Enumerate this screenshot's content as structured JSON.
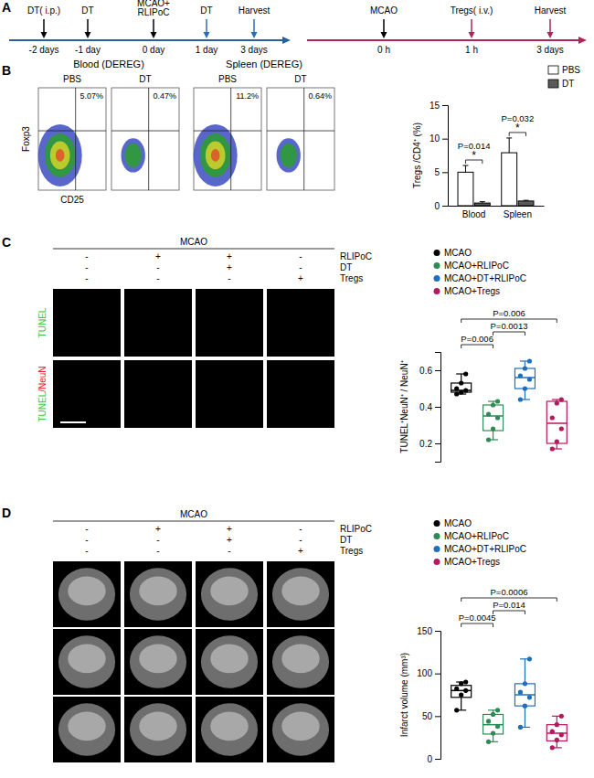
{
  "panel_labels": [
    "A",
    "B",
    "C",
    "D"
  ],
  "timelines": [
    {
      "color": "#2b5fa3",
      "events": [
        {
          "label": [
            "DT( i.p.)"
          ],
          "tick": "-2 days",
          "color": "#000000"
        },
        {
          "label": [
            "DT"
          ],
          "tick": "-1 day",
          "color": "#000000"
        },
        {
          "label": [
            "MCAO+",
            "RLIPoC"
          ],
          "tick": "0 day",
          "color": "#000000"
        },
        {
          "label": [
            "DT"
          ],
          "tick": "1 day",
          "color": "#2b6cb8"
        },
        {
          "label": [
            "Harvest"
          ],
          "tick": "3 days",
          "color": "#2b6cb8"
        }
      ]
    },
    {
      "color": "#b0245e",
      "events": [
        {
          "label": [
            "MCAO"
          ],
          "tick": "0 h",
          "color": "#000000"
        },
        {
          "label": [
            "Tregs( i.v.)"
          ],
          "tick": "1 h",
          "color": "#b0245e"
        },
        {
          "label": [
            "Harvest"
          ],
          "tick": "3 days",
          "color": "#b0245e"
        }
      ]
    }
  ],
  "flow": {
    "ylabel": "Foxp3",
    "xlabel": "CD25",
    "groups": [
      {
        "title": "Blood (DEREG)",
        "plots": [
          {
            "label": "PBS",
            "percent": "5.07%"
          },
          {
            "label": "DT",
            "percent": "0.47%"
          }
        ]
      },
      {
        "title": "Spleen (DEREG)",
        "plots": [
          {
            "label": "PBS",
            "percent": "11.2%"
          },
          {
            "label": "DT",
            "percent": "0.64%"
          }
        ]
      }
    ]
  },
  "image_panels": [
    {
      "kind": "microscopy",
      "header": "MCAO",
      "rows": [
        {
          "label": "RLIPoC",
          "signs": [
            "-",
            "+",
            "+",
            "-"
          ]
        },
        {
          "label": "DT",
          "signs": [
            "-",
            "-",
            "+",
            "-"
          ]
        },
        {
          "label": "Tregs",
          "signs": [
            "-",
            "-",
            "-",
            "+"
          ]
        }
      ],
      "row_labels": [
        [
          {
            "text": "TUNEL",
            "color": "#39c939"
          }
        ],
        [
          {
            "text": "TUNEL",
            "color": "#39c939"
          },
          {
            "text": "/NeuN",
            "color": "#e8231f"
          }
        ]
      ]
    },
    {
      "kind": "mri",
      "header": "MCAO",
      "rows": [
        {
          "label": "RLIPoC",
          "signs": [
            "-",
            "+",
            "+",
            "-"
          ]
        },
        {
          "label": "DT",
          "signs": [
            "-",
            "-",
            "+",
            "-"
          ]
        },
        {
          "label": "Tregs",
          "signs": [
            "-",
            "-",
            "-",
            "+"
          ]
        }
      ],
      "row_labels": []
    }
  ],
  "chart_data": [
    {
      "type": "bar",
      "categories": [
        "Blood",
        "Spleen"
      ],
      "y_label": "Tregs /CD4⁺ (%)",
      "ylim": [
        0,
        15
      ],
      "yticks": [
        0,
        5,
        10,
        15
      ],
      "legend": "top-right",
      "series": [
        {
          "name": "PBS",
          "color": "#ffffff",
          "values": [
            5.0,
            7.9
          ],
          "errors": [
            1.0,
            2.2
          ]
        },
        {
          "name": "DT",
          "color": "#5a5a5a",
          "values": [
            0.4,
            0.7
          ],
          "errors": [
            0.2,
            0.1
          ]
        }
      ],
      "annotations": [
        {
          "category": 0,
          "text": "P=0.014",
          "significance": "*"
        },
        {
          "category": 1,
          "text": "P=0.032",
          "significance": "*"
        }
      ]
    },
    {
      "type": "box",
      "y_label": "TUNEL⁺NeuN⁺ / NeuN⁺",
      "ylim": [
        0.1,
        0.7
      ],
      "yticks": [
        0.2,
        0.4,
        0.6
      ],
      "tick_labels": "y",
      "legend": "top-right",
      "series": [
        {
          "name": "MCAO",
          "color": "#000000",
          "min": 0.47,
          "q1": 0.48,
          "median": 0.49,
          "q3": 0.53,
          "max": 0.58,
          "points": [
            0.47,
            0.48,
            0.49,
            0.5,
            0.53,
            0.58
          ]
        },
        {
          "name": "MCAO+RLIPoC",
          "color": "#2e8b57",
          "min": 0.22,
          "q1": 0.27,
          "median": 0.35,
          "q3": 0.41,
          "max": 0.43,
          "points": [
            0.22,
            0.28,
            0.34,
            0.36,
            0.41,
            0.43
          ]
        },
        {
          "name": "MCAO+DT+RLIPoC",
          "color": "#1f6fbf",
          "min": 0.44,
          "q1": 0.5,
          "median": 0.56,
          "q3": 0.61,
          "max": 0.65,
          "points": [
            0.44,
            0.5,
            0.55,
            0.57,
            0.61,
            0.65
          ]
        },
        {
          "name": "MCAO+Tregs",
          "color": "#b5195e",
          "min": 0.17,
          "q1": 0.2,
          "median": 0.31,
          "q3": 0.43,
          "max": 0.44,
          "points": [
            0.17,
            0.21,
            0.28,
            0.34,
            0.42,
            0.44
          ]
        }
      ],
      "comparisons": [
        {
          "groups": [
            0,
            1
          ],
          "label": "P=0.006"
        },
        {
          "groups": [
            1,
            2
          ],
          "label": "P=0.0013"
        },
        {
          "groups": [
            0,
            3
          ],
          "label": "P=0.006"
        }
      ]
    },
    {
      "type": "box",
      "y_label": "Infarct volume (mm³)",
      "ylim": [
        0,
        150
      ],
      "yticks": [
        0,
        50,
        100,
        150
      ],
      "tick_labels": "y",
      "legend": "top-right",
      "series": [
        {
          "name": "MCAO",
          "color": "#000000",
          "min": 57,
          "q1": 72,
          "median": 80,
          "q3": 86,
          "max": 90,
          "points": [
            57,
            75,
            80,
            82,
            88,
            90
          ]
        },
        {
          "name": "MCAO+RLIPoC",
          "color": "#2e8b57",
          "min": 20,
          "q1": 29,
          "median": 40,
          "q3": 52,
          "max": 57,
          "points": [
            20,
            30,
            38,
            44,
            52,
            57
          ]
        },
        {
          "name": "MCAO+DT+RLIPoC",
          "color": "#1f6fbf",
          "min": 37,
          "q1": 62,
          "median": 75,
          "q3": 88,
          "max": 117,
          "points": [
            37,
            62,
            72,
            78,
            88,
            117
          ]
        },
        {
          "name": "MCAO+Tregs",
          "color": "#b5195e",
          "min": 13,
          "q1": 21,
          "median": 30,
          "q3": 40,
          "max": 50,
          "points": [
            13,
            22,
            28,
            32,
            40,
            50
          ]
        }
      ],
      "comparisons": [
        {
          "groups": [
            0,
            1
          ],
          "label": "P=0.0045"
        },
        {
          "groups": [
            1,
            2
          ],
          "label": "P=0.014"
        },
        {
          "groups": [
            0,
            3
          ],
          "label": "P=0.0006"
        }
      ]
    }
  ]
}
